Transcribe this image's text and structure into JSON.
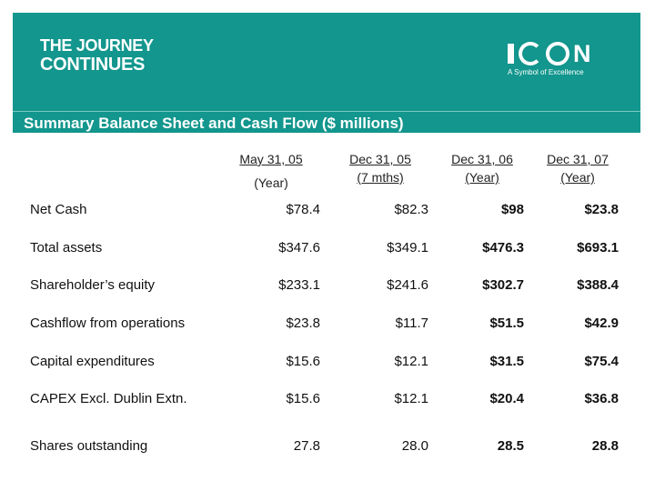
{
  "banner": {
    "tagline_line1": "THE JOURNEY",
    "tagline_line2": "CONTINUES",
    "logo_text": "ICON",
    "logo_subtitle": "A Symbol of Excellence",
    "bg_color": "#12968d"
  },
  "title": "Summary Balance Sheet and Cash Flow  ($ millions)",
  "columns": [
    {
      "line1": "May 31, 05",
      "line2": "(Year)"
    },
    {
      "line1": "Dec  31, 05",
      "line2": "(7 mths)"
    },
    {
      "line1": "Dec 31, 06",
      "line2": "(Year)"
    },
    {
      "line1": "Dec 31, 07",
      "line2": "(Year)"
    }
  ],
  "rows": [
    {
      "label": "Net Cash",
      "values": [
        "$78.4",
        "$82.3",
        "$98",
        "$23.8"
      ]
    },
    {
      "label": "Total assets",
      "values": [
        "$347.6",
        "$349.1",
        "$476.3",
        "$693.1"
      ]
    },
    {
      "label": "Shareholder’s equity",
      "values": [
        "$233.1",
        "$241.6",
        "$302.7",
        "$388.4"
      ]
    },
    {
      "label": "Cashflow from operations",
      "values": [
        "$23.8",
        "$11.7",
        "$51.5",
        "$42.9"
      ]
    },
    {
      "label": "Capital expenditures",
      "values": [
        "$15.6",
        "$12.1",
        "$31.5",
        "$75.4"
      ]
    },
    {
      "label": "CAPEX Excl. Dublin Extn.",
      "values": [
        "$15.6",
        "$12.1",
        "$20.4",
        "$36.8"
      ]
    },
    {
      "label": "Shares outstanding",
      "values": [
        "27.8",
        "28.0",
        "28.5",
        "28.8"
      ]
    }
  ]
}
